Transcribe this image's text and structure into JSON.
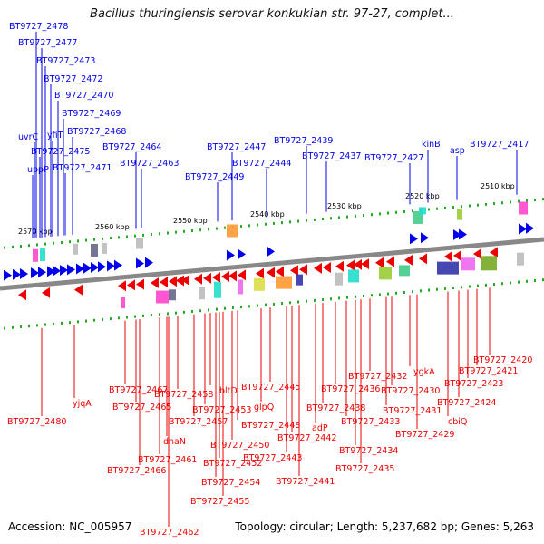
{
  "title": "Bacillus thuringiensis serovar konkukian str. 97-27, complet...",
  "footer": {
    "accession": "Accession: NC_005957",
    "summary": "Topology: circular; Length: 5,237,682 bp; Genes: 5,263"
  },
  "colors": {
    "forward": "#0000ee",
    "reverse": "#ee0000",
    "backbone": "#888888",
    "tick": "#22aa22"
  },
  "scale_labels": [
    "2510 kbp",
    "2520 kbp",
    "2530 kbp",
    "2540 kbp",
    "2550 kbp",
    "2560 kbp",
    "2570 kbp"
  ],
  "forward_labels": [
    "BT9727_2478",
    "BT9727_2477",
    "BT9727_2473",
    "BT9727_2472",
    "BT9727_2470",
    "BT9727_2469",
    "uvrC",
    "yfiT",
    "BT9727_2468",
    "BT9727_2475",
    "uppP",
    "BT9727_2471",
    "BT9727_2464",
    "BT9727_2463",
    "BT9727_2447",
    "BT9727_2439",
    "BT9727_2444",
    "BT9727_2437",
    "BT9727_2449",
    "BT9727_2427",
    "kinB",
    "asp",
    "BT9727_2417"
  ],
  "reverse_labels": [
    "BT9727_2480",
    "yjqA",
    "BT9727_2467",
    "BT9727_2465",
    "BT9727_2466",
    "BT9727_2461",
    "dnaN",
    "BT9727_2462",
    "BT9727_2458",
    "BT9727_2457",
    "BT9727_2453",
    "bltD",
    "BT9727_2454",
    "BT9727_2455",
    "BT9727_2452",
    "BT9727_2450",
    "BT9727_2448",
    "glpQ",
    "BT9727_2445",
    "BT9727_2443",
    "BT9727_2442",
    "BT9727_2441",
    "adP",
    "BT9727_2438",
    "BT9727_2436",
    "BT9727_2433",
    "BT9727_2434",
    "BT9727_2435",
    "BT9727_2432",
    "BT9727_2431",
    "BT9727_2430",
    "ygkA",
    "BT9727_2429",
    "cbiQ",
    "BT9727_2424",
    "BT9727_2423",
    "BT9727_2421",
    "BT9727_2420"
  ]
}
